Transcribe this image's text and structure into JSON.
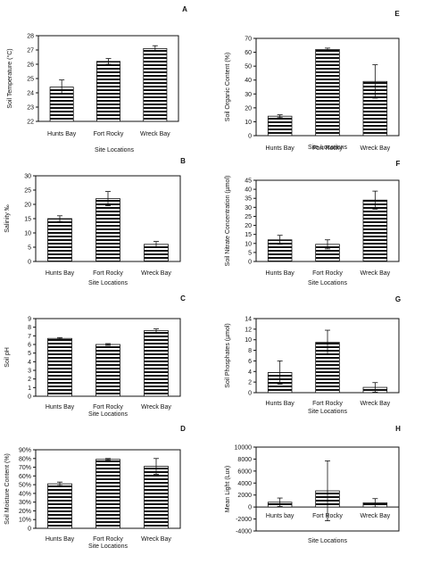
{
  "colors": {
    "bar_stripe": "#111111",
    "bar_fill": "#ffffff",
    "axis": "#111111"
  },
  "chart_data": [
    {
      "panel": "A",
      "type": "bar",
      "categories": [
        "Hunts Bay",
        "Fort Rocky",
        "Wreck Bay"
      ],
      "values": [
        24.4,
        26.2,
        27.1
      ],
      "errors": [
        0.5,
        0.2,
        0.2
      ],
      "ylabel": "Soil Temperature (°C)",
      "xlabel": "Site Locations",
      "ylim": [
        22,
        28
      ],
      "yticks": [
        22,
        23,
        24,
        25,
        26,
        27,
        28
      ],
      "ytick_labels": [
        "22",
        "23",
        "24",
        "25",
        "26",
        "27",
        "28"
      ],
      "zero_line": false
    },
    {
      "panel": "E",
      "type": "bar",
      "categories": [
        "Hunts Bay",
        "Fort Rocky",
        "Wreck Bay"
      ],
      "values": [
        14,
        62,
        39
      ],
      "errors": [
        1,
        1,
        12
      ],
      "ylabel": "Soil Organic Content (%)",
      "xlabel": "Site Locations",
      "ylim": [
        0,
        70
      ],
      "yticks": [
        0,
        10,
        20,
        30,
        40,
        50,
        60,
        70
      ],
      "ytick_labels": [
        "0",
        "10",
        "20",
        "30",
        "40",
        "50",
        "60",
        "70"
      ],
      "zero_line": false
    },
    {
      "panel": "B",
      "type": "bar",
      "categories": [
        "Hunts Bay",
        "Fort Rocky",
        "Wreck Bay"
      ],
      "values": [
        15,
        22,
        6
      ],
      "errors": [
        1,
        2.5,
        1
      ],
      "ylabel": "Salinity ‰",
      "xlabel": "Site Locations",
      "ylim": [
        0,
        30
      ],
      "yticks": [
        0,
        5,
        10,
        15,
        20,
        25,
        30
      ],
      "ytick_labels": [
        "0",
        "5",
        "10",
        "15",
        "20",
        "25",
        "30"
      ],
      "zero_line": false
    },
    {
      "panel": "F",
      "type": "bar",
      "categories": [
        "Hunts Bay",
        "Fort Rocky",
        "Wreck Bay"
      ],
      "values": [
        12,
        9.5,
        34
      ],
      "errors": [
        2.5,
        2.5,
        5
      ],
      "ylabel": "Soil Nitrate Concentration (µmol)",
      "xlabel": "Site Locations",
      "ylim": [
        0,
        45
      ],
      "yticks": [
        0,
        5,
        10,
        15,
        20,
        25,
        30,
        35,
        40,
        45
      ],
      "ytick_labels": [
        "0",
        "5",
        "10",
        "15",
        "20",
        "25",
        "30",
        "35",
        "40",
        "45"
      ],
      "zero_line": false
    },
    {
      "panel": "C",
      "type": "bar",
      "categories": [
        "Hunts Bay",
        "Fort Rocky",
        "Wreck Bay"
      ],
      "values": [
        6.7,
        6.0,
        7.6
      ],
      "errors": [
        0.1,
        0.1,
        0.2
      ],
      "ylabel": "Soil pH",
      "xlabel": "Site Locations",
      "ylim": [
        0,
        9
      ],
      "yticks": [
        0,
        1,
        2,
        3,
        4,
        5,
        6,
        7,
        8,
        9
      ],
      "ytick_labels": [
        "0",
        "1",
        "2",
        "3",
        "4",
        "5",
        "6",
        "7",
        "8",
        "9"
      ],
      "zero_line": false
    },
    {
      "panel": "G",
      "type": "bar",
      "categories": [
        "Hunts Bay",
        "Fort Rocky",
        "Wreck Bay"
      ],
      "values": [
        3.8,
        9.5,
        1.0
      ],
      "errors": [
        2.2,
        2.3,
        0.9
      ],
      "ylabel": "Soil Phosphates (µmol)",
      "xlabel": "Site Locations",
      "ylim": [
        0,
        14
      ],
      "yticks": [
        0,
        2,
        4,
        6,
        8,
        10,
        12,
        14
      ],
      "ytick_labels": [
        "0",
        "2",
        "4",
        "6",
        "8",
        "10",
        "12",
        "14"
      ],
      "zero_line": false
    },
    {
      "panel": "D",
      "type": "bar",
      "categories": [
        "Hunts Bay",
        "Fort Rocky",
        "Wreck Bay"
      ],
      "values": [
        51,
        79,
        71
      ],
      "errors": [
        2,
        1,
        9
      ],
      "ylabel": "Soil Moisture Content (%)",
      "xlabel": "Site Locations",
      "ylim": [
        0,
        90
      ],
      "yticks": [
        0,
        10,
        20,
        30,
        40,
        50,
        60,
        70,
        80,
        90
      ],
      "ytick_labels": [
        "0",
        "10%",
        "20%",
        "30%",
        "40%",
        "50%",
        "60%",
        "70%",
        "80%",
        "90%"
      ],
      "zero_line": false
    },
    {
      "panel": "H",
      "type": "bar",
      "categories": [
        "Hunts bay",
        "Fort Rocky",
        "Wreck Bay"
      ],
      "values": [
        800,
        2700,
        700
      ],
      "errors": [
        700,
        5000,
        700
      ],
      "ylabel": "Mean Light (Lux)",
      "xlabel": "Site Locations",
      "ylim": [
        -4000,
        10000
      ],
      "yticks": [
        -4000,
        -2000,
        0,
        2000,
        4000,
        6000,
        8000,
        10000
      ],
      "ytick_labels": [
        "-4000",
        "-2000",
        "0",
        "2000",
        "4000",
        "6000",
        "8000",
        "10000"
      ],
      "zero_line": true
    }
  ]
}
